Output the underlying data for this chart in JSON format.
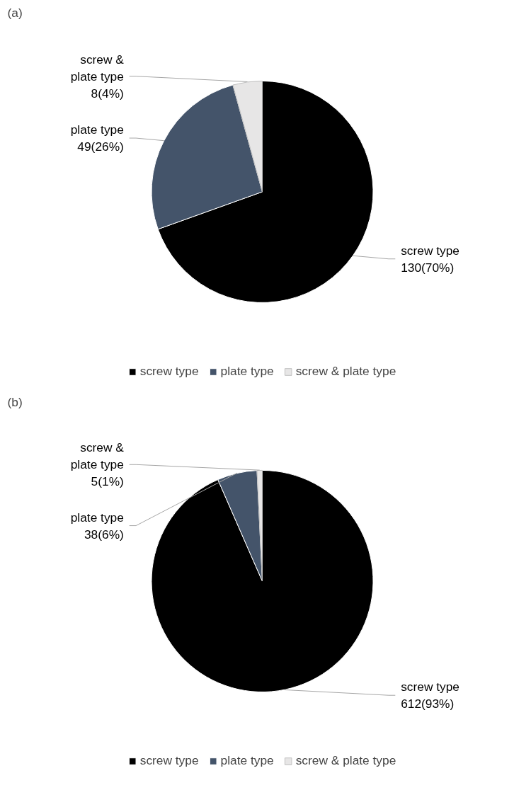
{
  "chart_data": [
    {
      "type": "pie",
      "title": "(a)",
      "categories": [
        "screw type",
        "plate type",
        "screw & plate type"
      ],
      "values": [
        130,
        49,
        8
      ],
      "colors": [
        "#000000",
        "#44546a",
        "#e7e6e6"
      ],
      "value_labels": [
        "screw type\n130(70%)",
        "plate type\n49(26%)",
        "screw &\nplate type\n8(4%)"
      ],
      "legend": "bottom"
    },
    {
      "type": "pie",
      "title": "(b)",
      "categories": [
        "screw type",
        "plate type",
        "screw & plate type"
      ],
      "values": [
        612,
        38,
        5
      ],
      "colors": [
        "#000000",
        "#44546a",
        "#e7e6e6"
      ],
      "value_labels": [
        "screw type\n612(93%)",
        "plate type\n38(6%)",
        "screw &\nplate type\n5(1%)"
      ],
      "legend": "bottom"
    }
  ]
}
